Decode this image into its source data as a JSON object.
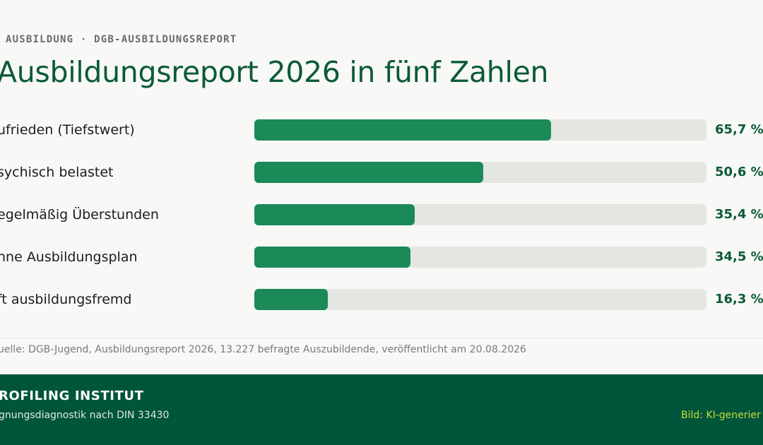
{
  "header": {
    "eyebrow": "AUSBILDUNG · DGB-AUSBILDUNGSREPORT",
    "title": "Ausbildungsreport 2026 in fünf Zahlen"
  },
  "chart_data": {
    "type": "bar",
    "orientation": "horizontal",
    "title": "Ausbildungsreport 2026 in fünf Zahlen",
    "xlim": [
      0,
      100
    ],
    "grid": false,
    "categories": [
      "ufrieden (Tiefstwert)",
      "sychisch belastet",
      "egelmäßig Überstunden",
      "hne Ausbildungsplan",
      "ft ausbildungsfremd"
    ],
    "values": [
      65.7,
      50.6,
      35.4,
      34.5,
      16.3
    ],
    "value_labels": [
      "65,7 %",
      "50,6 %",
      "35,4 %",
      "34,5 %",
      "16,3 %"
    ],
    "colors": {
      "bar": "#1b8a58",
      "track": "#e4e6e2",
      "value": "#0b5a3a"
    }
  },
  "source": "uelle: DGB-Jugend, Ausbildungsreport 2026, 13.227 befragte Auszubildende, veröffentlicht am 20.08.2026",
  "footer": {
    "brand": "ROFILING INSTITUT",
    "subtitle": "gnungsdiagnostik nach DIN 33430",
    "credit": "Bild: KI-generier",
    "background": "#00553a",
    "credit_color": "#c6dc3a"
  }
}
